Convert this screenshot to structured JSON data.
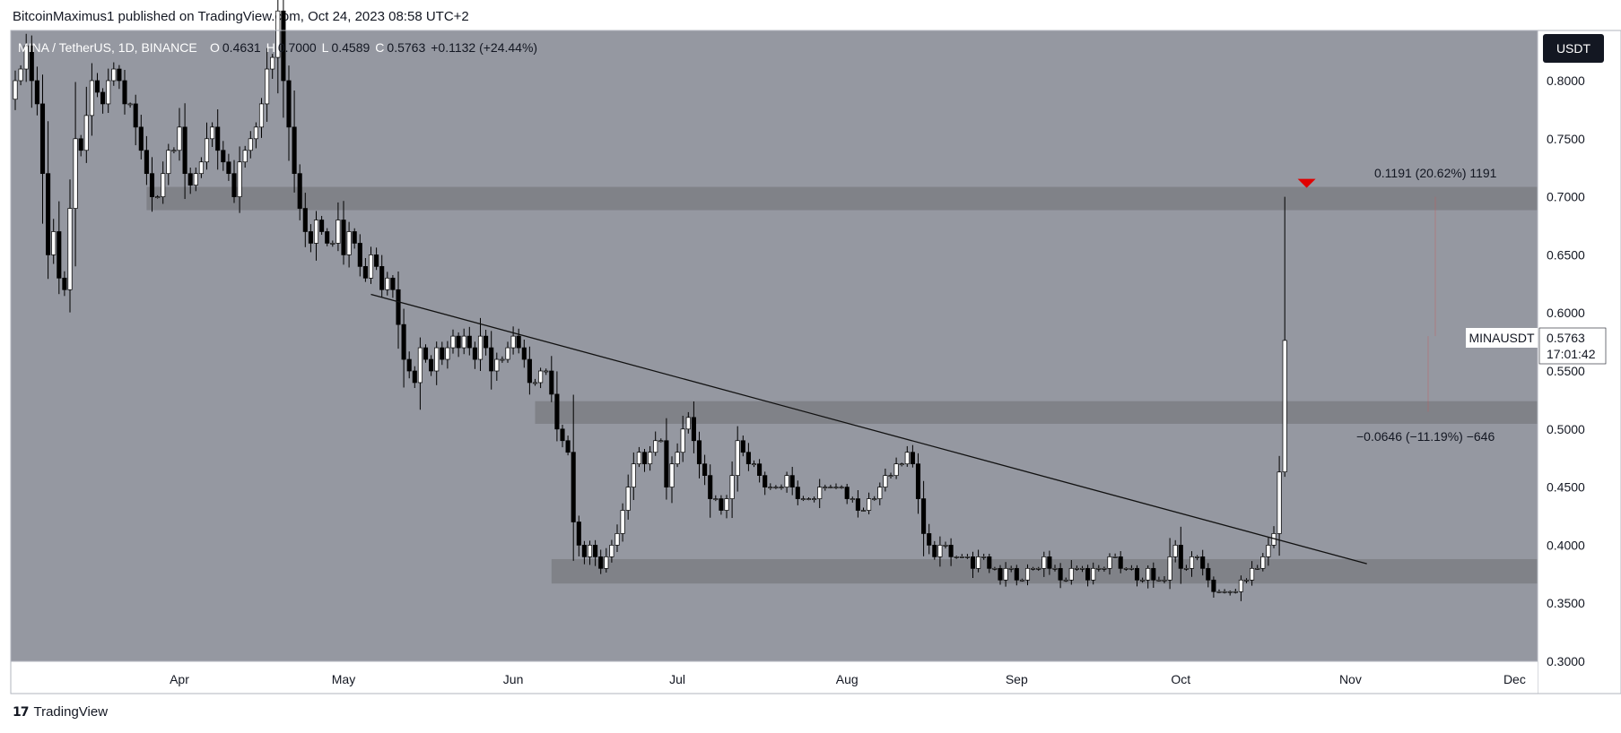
{
  "header": {
    "published": "BitcoinMaximus1 published on TradingView.com, Oct 24, 2023 08:58 UTC+2"
  },
  "footer": {
    "brand": "TradingView"
  },
  "legend": {
    "symbol": "MINA / TetherUS, 1D, BINANCE",
    "o_label": "O",
    "o_value": "0.4631",
    "h_label": "H",
    "h_value": "0.7000",
    "l_label": "L",
    "l_value": "0.4589",
    "c_label": "C",
    "c_value": "0.5763",
    "change": "+0.1132 (+24.44%)"
  },
  "currency": "USDT",
  "price_tag": {
    "symbol": "MINAUSDT",
    "price": "0.5763",
    "countdown": "17:01:42"
  },
  "measure_labels": {
    "upper": "0.1191 (20.62%) 1191",
    "lower": "−0.0646 (−11.19%) −646"
  },
  "colors": {
    "background": "#9598a1",
    "zone": "#808288",
    "candle_up": "#ffffff",
    "candle_down": "#000000",
    "marker": "#e00000",
    "axis_bg": "#ffffff"
  },
  "chart_data": {
    "type": "candlestick",
    "ylim": [
      0.3,
      0.83
    ],
    "y_ticks": [
      "0.8000",
      "0.7500",
      "0.7000",
      "0.6500",
      "0.6000",
      "0.5500",
      "0.5000",
      "0.4500",
      "0.4000",
      "0.3500",
      "0.3000"
    ],
    "x_ticks": [
      "Apr",
      "May",
      "Jun",
      "Jul",
      "Aug",
      "Sep",
      "Oct",
      "Nov",
      "Dec"
    ],
    "start_date": "2023-03-02",
    "zones": [
      {
        "from": "2023-03-26",
        "to": "2023-12-31",
        "low": 0.6885,
        "high": 0.7085
      },
      {
        "from": "2023-06-05",
        "to": "2023-12-31",
        "low": 0.5045,
        "high": 0.524
      },
      {
        "from": "2023-06-08",
        "to": "2023-12-31",
        "low": 0.367,
        "high": 0.388
      }
    ],
    "trendline": {
      "from_date": "2023-05-06",
      "from_price": 0.616,
      "to_date": "2023-11-04",
      "to_price": 0.384
    },
    "closes": [
      0.8,
      0.81,
      0.83,
      0.8,
      0.78,
      0.72,
      0.65,
      0.67,
      0.63,
      0.62,
      0.69,
      0.75,
      0.74,
      0.77,
      0.8,
      0.79,
      0.78,
      0.8,
      0.81,
      0.8,
      0.78,
      0.78,
      0.76,
      0.74,
      0.72,
      0.7,
      0.7,
      0.72,
      0.74,
      0.74,
      0.76,
      0.72,
      0.71,
      0.72,
      0.73,
      0.75,
      0.76,
      0.74,
      0.73,
      0.72,
      0.7,
      0.73,
      0.74,
      0.75,
      0.76,
      0.78,
      0.81,
      0.82,
      0.86,
      0.8,
      0.76,
      0.72,
      0.69,
      0.67,
      0.66,
      0.68,
      0.67,
      0.66,
      0.66,
      0.68,
      0.65,
      0.67,
      0.66,
      0.64,
      0.63,
      0.65,
      0.64,
      0.62,
      0.63,
      0.62,
      0.59,
      0.56,
      0.55,
      0.54,
      0.57,
      0.56,
      0.55,
      0.57,
      0.56,
      0.57,
      0.58,
      0.57,
      0.58,
      0.57,
      0.56,
      0.58,
      0.57,
      0.55,
      0.56,
      0.56,
      0.57,
      0.58,
      0.57,
      0.56,
      0.54,
      0.54,
      0.55,
      0.55,
      0.53,
      0.5,
      0.49,
      0.48,
      0.42,
      0.4,
      0.39,
      0.4,
      0.39,
      0.38,
      0.39,
      0.4,
      0.41,
      0.43,
      0.45,
      0.47,
      0.48,
      0.47,
      0.48,
      0.49,
      0.49,
      0.45,
      0.47,
      0.48,
      0.5,
      0.51,
      0.49,
      0.47,
      0.46,
      0.44,
      0.44,
      0.43,
      0.44,
      0.46,
      0.49,
      0.48,
      0.47,
      0.47,
      0.46,
      0.45,
      0.45,
      0.45,
      0.45,
      0.46,
      0.45,
      0.44,
      0.44,
      0.44,
      0.44,
      0.45,
      0.45,
      0.45,
      0.45,
      0.45,
      0.44,
      0.44,
      0.43,
      0.43,
      0.44,
      0.44,
      0.45,
      0.46,
      0.46,
      0.47,
      0.47,
      0.48,
      0.47,
      0.44,
      0.41,
      0.4,
      0.39,
      0.4,
      0.4,
      0.39,
      0.39,
      0.39,
      0.39,
      0.38,
      0.39,
      0.39,
      0.38,
      0.38,
      0.37,
      0.38,
      0.38,
      0.37,
      0.37,
      0.38,
      0.38,
      0.38,
      0.39,
      0.38,
      0.38,
      0.37,
      0.37,
      0.38,
      0.38,
      0.38,
      0.37,
      0.38,
      0.38,
      0.38,
      0.39,
      0.39,
      0.38,
      0.38,
      0.38,
      0.37,
      0.37,
      0.38,
      0.37,
      0.37,
      0.37,
      0.39,
      0.4,
      0.38,
      0.38,
      0.39,
      0.39,
      0.38,
      0.37,
      0.36,
      0.36,
      0.36,
      0.36,
      0.36,
      0.37,
      0.37,
      0.38,
      0.38,
      0.39,
      0.4,
      0.41,
      0.463,
      0.5763
    ],
    "last_candle": {
      "date": "2023-10-24",
      "open": 0.4631,
      "high": 0.7,
      "low": 0.4589,
      "close": 0.5763
    }
  }
}
